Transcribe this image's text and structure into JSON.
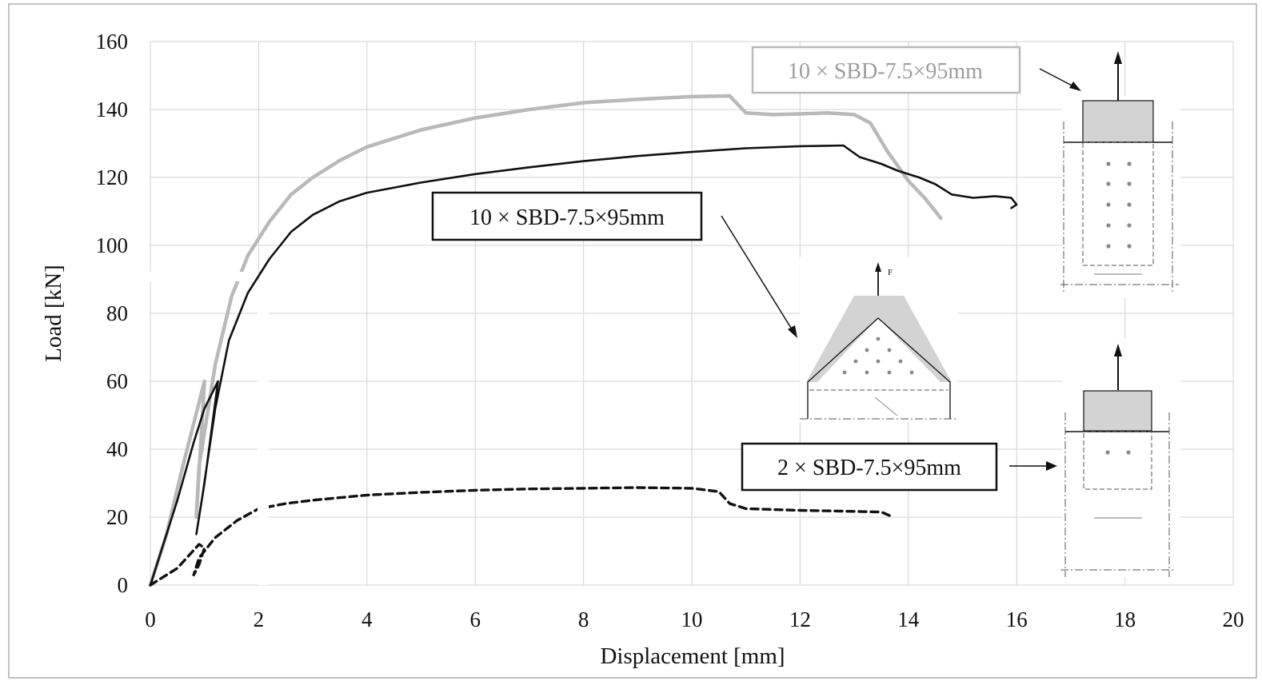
{
  "chart_data": {
    "type": "line",
    "title": "",
    "xlabel": "Displacement [mm]",
    "ylabel": "Load [kN]",
    "xlim": [
      0,
      20
    ],
    "ylim": [
      0,
      160
    ],
    "xticks": [
      0,
      2,
      4,
      6,
      8,
      10,
      12,
      14,
      16,
      18,
      20
    ],
    "yticks": [
      0,
      20,
      40,
      60,
      80,
      100,
      120,
      140,
      160
    ],
    "grid": true,
    "colors": {
      "light": "#b9b9b9",
      "dark": "#111111",
      "dashed": "#111111",
      "fill": "#d3d3d3"
    },
    "series": [
      {
        "style": "solid-light-grey",
        "points": [
          [
            0,
            0
          ],
          [
            0.3,
            15
          ],
          [
            0.6,
            35
          ],
          [
            1.0,
            60
          ],
          [
            0.85,
            20
          ],
          [
            0.9,
            35
          ],
          [
            1.2,
            65
          ],
          [
            1.5,
            85
          ],
          [
            1.8,
            97
          ],
          [
            2.2,
            107
          ],
          [
            2.6,
            115
          ],
          [
            3,
            120
          ],
          [
            3.5,
            125
          ],
          [
            4,
            129
          ],
          [
            5,
            134
          ],
          [
            6,
            137.5
          ],
          [
            7,
            140
          ],
          [
            8,
            142
          ],
          [
            9,
            143
          ],
          [
            10,
            143.8
          ],
          [
            10.7,
            144
          ],
          [
            11,
            139
          ],
          [
            11.5,
            138.5
          ],
          [
            12,
            138.7
          ],
          [
            12.5,
            139
          ],
          [
            13,
            138.5
          ],
          [
            13.3,
            136
          ],
          [
            13.6,
            128
          ],
          [
            14,
            119
          ],
          [
            14.3,
            114
          ],
          [
            14.6,
            108
          ]
        ]
      },
      {
        "style": "solid-black",
        "points": [
          [
            0,
            0
          ],
          [
            0.5,
            25
          ],
          [
            0.8,
            42
          ],
          [
            1.0,
            52
          ],
          [
            1.25,
            60
          ],
          [
            1.0,
            30
          ],
          [
            0.85,
            15
          ],
          [
            0.95,
            25
          ],
          [
            1.2,
            52
          ],
          [
            1.45,
            72
          ],
          [
            1.8,
            86
          ],
          [
            2.2,
            96
          ],
          [
            2.6,
            104
          ],
          [
            3,
            109
          ],
          [
            3.5,
            113
          ],
          [
            4,
            115.5
          ],
          [
            5,
            118.5
          ],
          [
            6,
            121
          ],
          [
            7,
            123
          ],
          [
            8,
            124.8
          ],
          [
            9,
            126.3
          ],
          [
            10,
            127.5
          ],
          [
            11,
            128.6
          ],
          [
            12,
            129.2
          ],
          [
            12.8,
            129.4
          ],
          [
            13.1,
            126
          ],
          [
            13.5,
            124
          ],
          [
            13.8,
            122
          ],
          [
            14.2,
            120
          ],
          [
            14.5,
            118
          ],
          [
            14.8,
            115
          ],
          [
            15.2,
            114
          ],
          [
            15.6,
            114.5
          ],
          [
            15.9,
            114
          ],
          [
            16.0,
            112
          ],
          [
            15.9,
            111
          ]
        ]
      },
      {
        "style": "dashed-black",
        "points": [
          [
            0,
            0
          ],
          [
            0.5,
            5
          ],
          [
            0.9,
            12
          ],
          [
            1.0,
            11
          ],
          [
            0.9,
            6
          ],
          [
            0.8,
            3
          ],
          [
            0.9,
            8
          ],
          [
            1.2,
            14
          ],
          [
            1.6,
            19
          ],
          [
            2,
            22.5
          ],
          [
            2.5,
            24
          ],
          [
            3,
            25
          ],
          [
            4,
            26.5
          ],
          [
            5,
            27.3
          ],
          [
            6,
            27.9
          ],
          [
            7,
            28.3
          ],
          [
            8,
            28.5
          ],
          [
            9,
            28.7
          ],
          [
            10,
            28.5
          ],
          [
            10.5,
            27.5
          ],
          [
            10.7,
            24
          ],
          [
            11,
            22.5
          ],
          [
            12,
            22
          ],
          [
            13,
            21.7
          ],
          [
            13.5,
            21.5
          ],
          [
            13.65,
            20.5
          ]
        ]
      }
    ],
    "annotations": [
      {
        "id": "grey-label",
        "text": "10 × SBD-7.5×95mm"
      },
      {
        "id": "black-label",
        "text": "10 × SBD-7.5×95mm"
      },
      {
        "id": "dashed-label",
        "text": "2 × SBD-7.5×95mm"
      },
      {
        "id": "force-symbol",
        "text": "F"
      }
    ]
  }
}
